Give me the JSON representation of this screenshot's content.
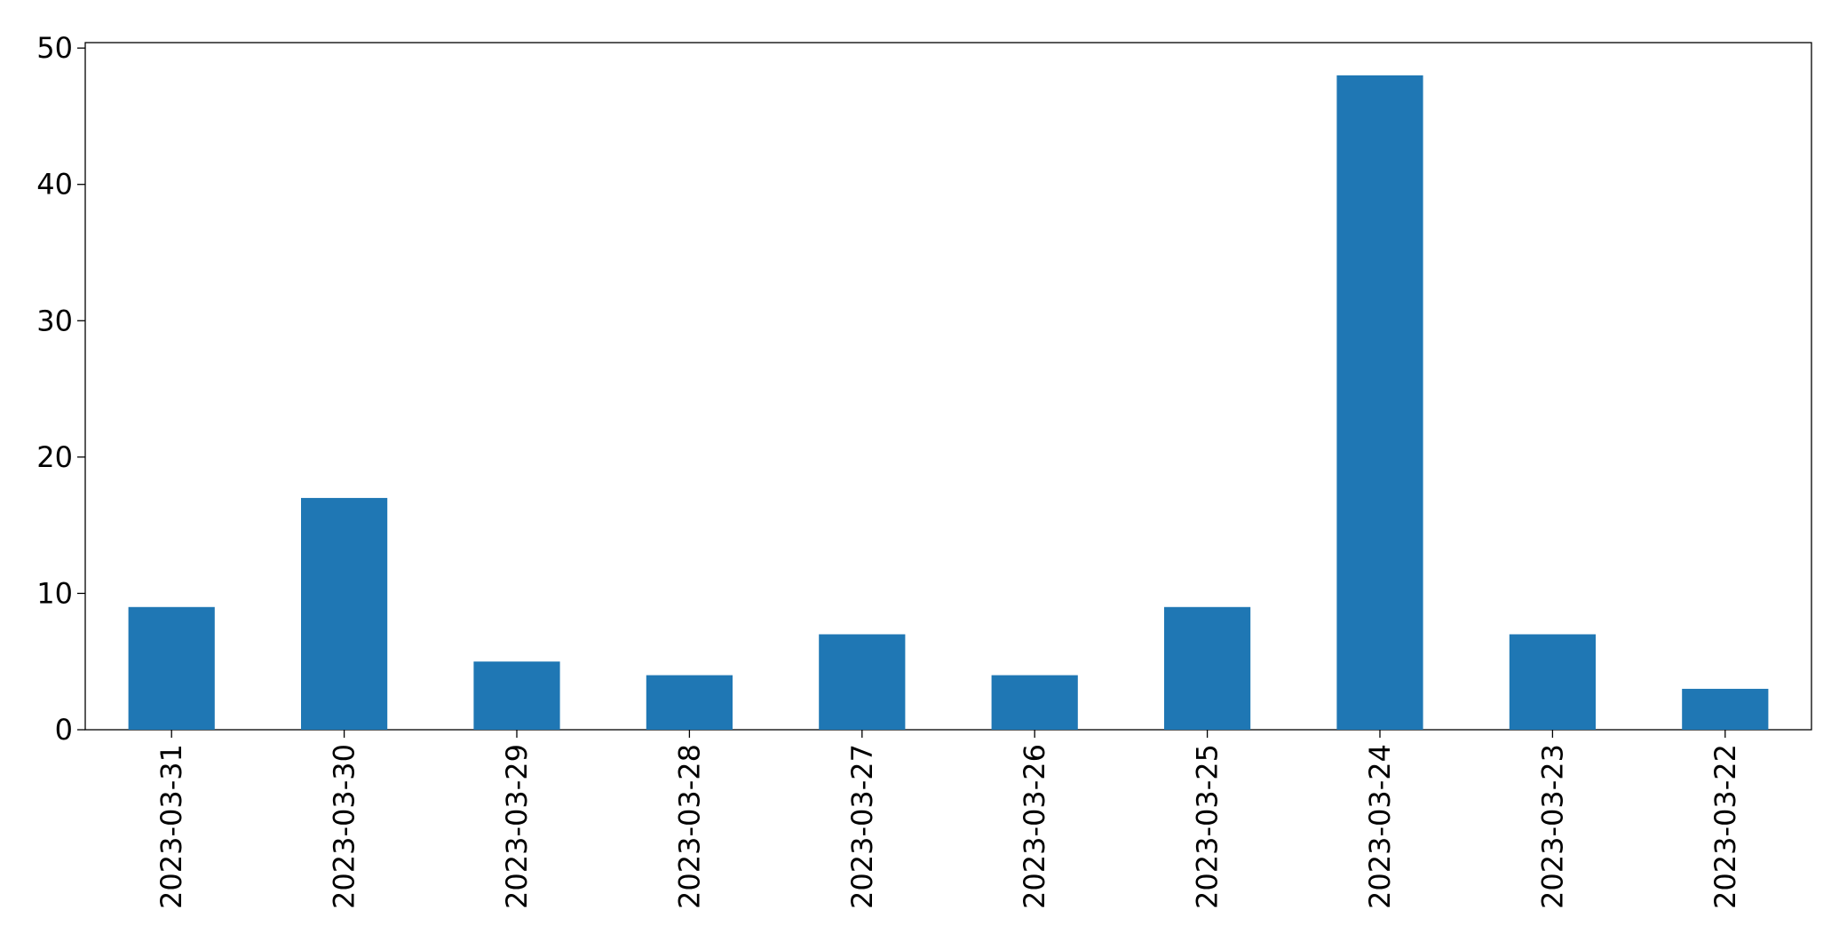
{
  "chart_data": {
    "type": "bar",
    "categories": [
      "2023-03-31",
      "2023-03-30",
      "2023-03-29",
      "2023-03-28",
      "2023-03-27",
      "2023-03-26",
      "2023-03-25",
      "2023-03-24",
      "2023-03-23",
      "2023-03-22"
    ],
    "values": [
      9,
      17,
      5,
      4,
      7,
      4,
      9,
      48,
      7,
      3
    ],
    "color": "#1f77b4",
    "ylim": [
      0,
      50.4
    ],
    "yticks": [
      0,
      10,
      20,
      30,
      40,
      50
    ],
    "grid": false
  }
}
